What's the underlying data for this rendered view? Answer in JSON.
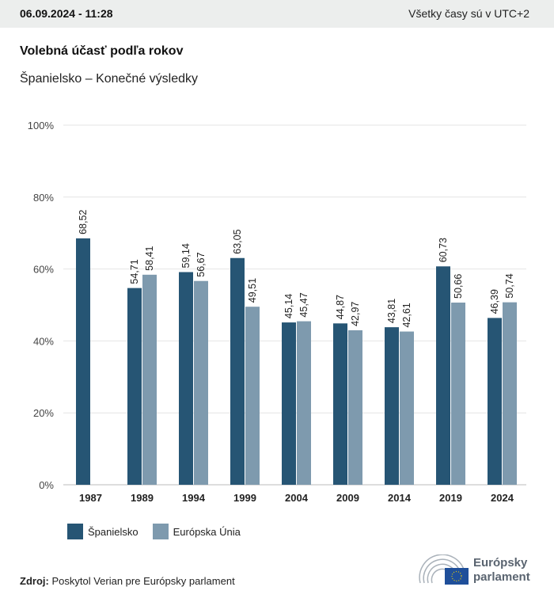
{
  "header": {
    "date": "06.09.2024 - 11:28",
    "timezone": "Všetky časy sú v UTC+2"
  },
  "title": "Volebná účasť podľa rokov",
  "subtitle": "Španielsko – Konečné výsledky",
  "colors": {
    "spain": "#265574",
    "eu": "#7e9aae"
  },
  "chart_data": {
    "type": "bar",
    "categories": [
      "1987",
      "1989",
      "1994",
      "1999",
      "2004",
      "2009",
      "2014",
      "2019",
      "2024"
    ],
    "series": [
      {
        "name": "Španielsko",
        "values": [
          68.52,
          54.71,
          59.14,
          63.05,
          45.14,
          44.87,
          43.81,
          60.73,
          46.39
        ],
        "labels": [
          "68,52",
          "54,71",
          "59,14",
          "63,05",
          "45,14",
          "44,87",
          "43,81",
          "60,73",
          "46,39"
        ]
      },
      {
        "name": "Európska Únia",
        "values": [
          null,
          58.41,
          56.67,
          49.51,
          45.47,
          42.97,
          42.61,
          50.66,
          50.74
        ],
        "labels": [
          "",
          "58,41",
          "56,67",
          "49,51",
          "45,47",
          "42,97",
          "42,61",
          "50,66",
          "50,74"
        ]
      }
    ],
    "ylim": [
      0,
      100
    ],
    "yticks": [
      "0%",
      "20%",
      "40%",
      "60%",
      "80%",
      "100%"
    ],
    "grid": true,
    "legend": "bottom-left"
  },
  "legend": {
    "items": [
      "Španielsko",
      "Európska Únia"
    ]
  },
  "source": {
    "label": "Zdroj:",
    "text": "Poskytol Verian pre Európsky parlament"
  },
  "logo": {
    "line1": "Európsky",
    "line2": "parlament"
  }
}
